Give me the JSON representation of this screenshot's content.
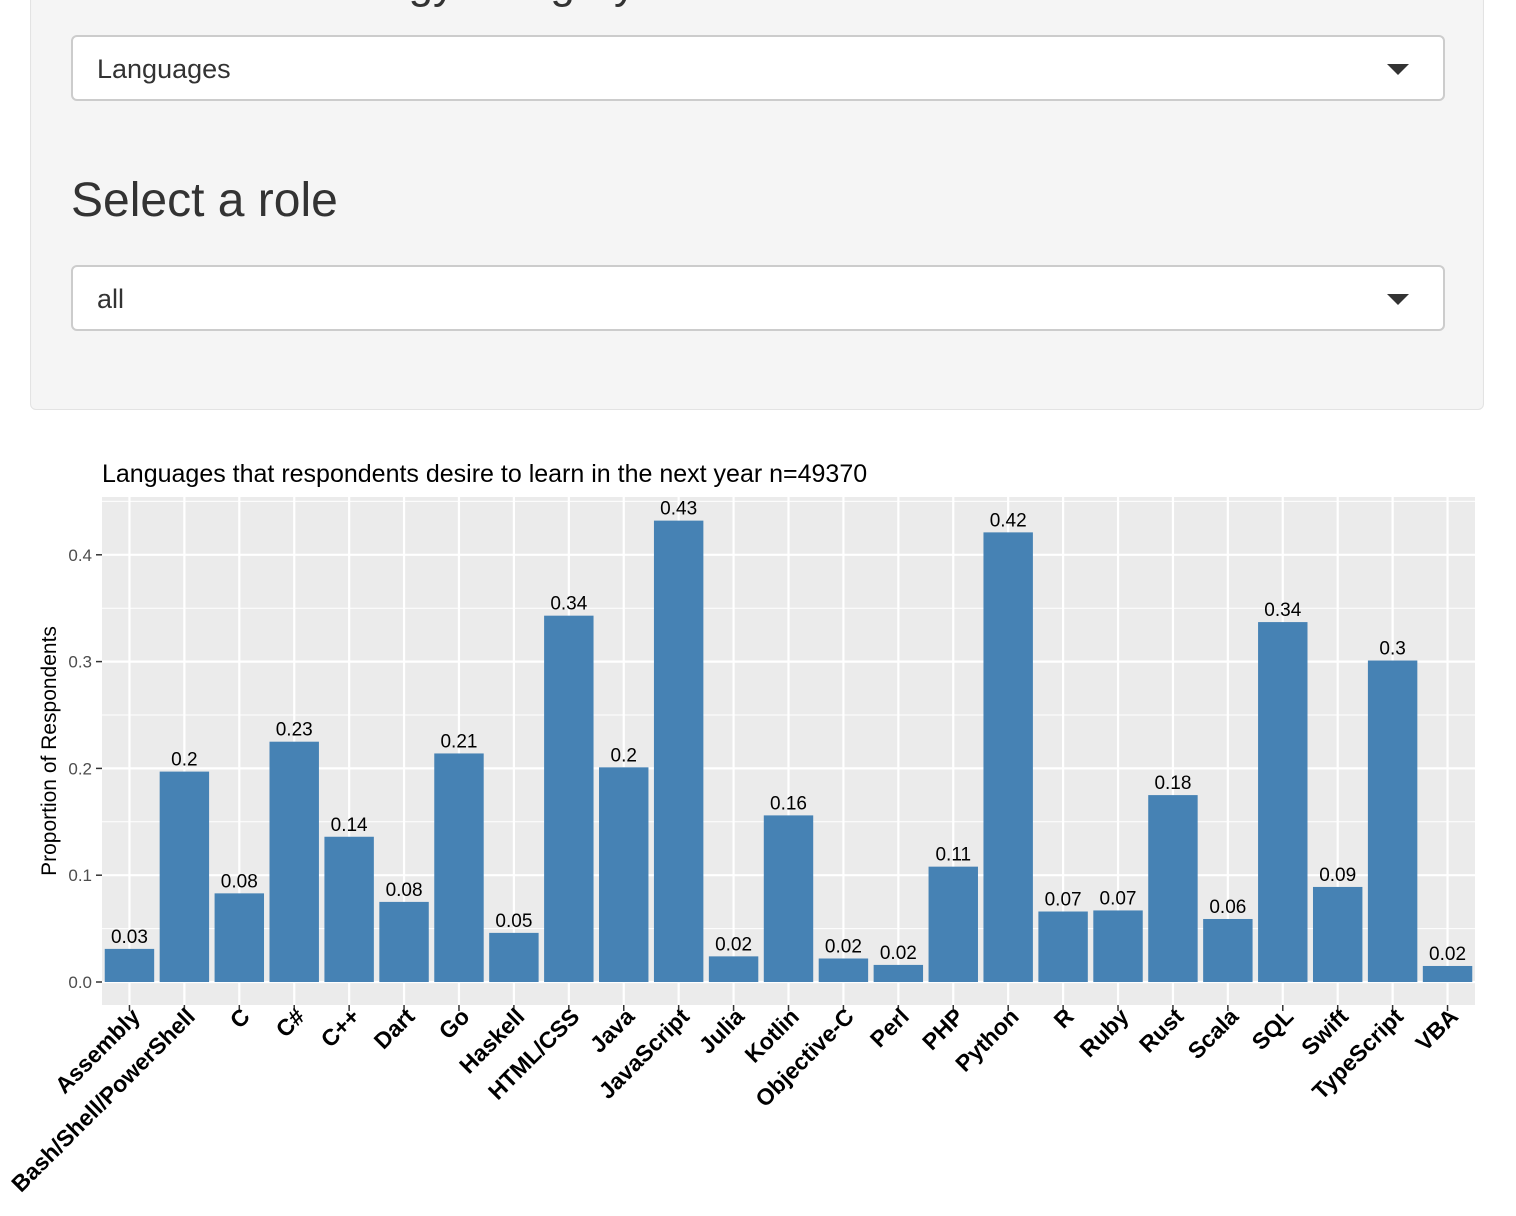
{
  "controls": {
    "category_heading": "Select a technology category",
    "category_select": {
      "value": "Languages"
    },
    "role_heading": "Select a role",
    "role_select": {
      "value": "all"
    }
  },
  "colors": {
    "bar": "#4682b4",
    "panel_bg": "#ebebeb",
    "grid": "#ffffff"
  },
  "chart_data": {
    "type": "bar",
    "title": "Languages that respondents desire to learn in the next year n=49370",
    "xlabel": "",
    "ylabel": "Proportion of Respondents",
    "ylim": [
      0,
      0.45
    ],
    "yticks": [
      0.0,
      0.1,
      0.2,
      0.3,
      0.4
    ],
    "ytick_labels": [
      "0.0",
      "0.1",
      "0.2",
      "0.3",
      "0.4"
    ],
    "grid": true,
    "categories": [
      "Assembly",
      "Bash/Shell/PowerShell",
      "C",
      "C#",
      "C++",
      "Dart",
      "Go",
      "Haskell",
      "HTML/CSS",
      "Java",
      "JavaScript",
      "Julia",
      "Kotlin",
      "Objective-C",
      "Perl",
      "PHP",
      "Python",
      "R",
      "Ruby",
      "Rust",
      "Scala",
      "SQL",
      "Swift",
      "TypeScript",
      "VBA"
    ],
    "values": [
      0.031,
      0.197,
      0.083,
      0.225,
      0.136,
      0.075,
      0.214,
      0.046,
      0.343,
      0.201,
      0.432,
      0.024,
      0.156,
      0.022,
      0.016,
      0.108,
      0.421,
      0.066,
      0.067,
      0.175,
      0.059,
      0.337,
      0.089,
      0.301,
      0.015
    ],
    "value_labels": [
      "0.03",
      "0.2",
      "0.08",
      "0.23",
      "0.14",
      "0.08",
      "0.21",
      "0.05",
      "0.34",
      "0.2",
      "0.43",
      "0.02",
      "0.16",
      "0.02",
      "0.02",
      "0.11",
      "0.42",
      "0.07",
      "0.07",
      "0.18",
      "0.06",
      "0.34",
      "0.09",
      "0.3",
      "0.02"
    ]
  }
}
